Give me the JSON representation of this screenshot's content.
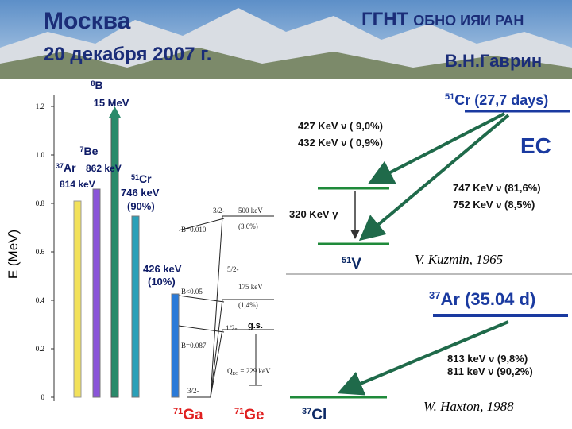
{
  "header": {
    "city": "Москва",
    "date": "20 декабря 2007 г.",
    "org_main": "ГГНТ",
    "org_rest": "ОБНО ИЯИ РАН",
    "author": "В.Н.Гаврин"
  },
  "left": {
    "axis_label": "E (MeV)",
    "yticks": [
      0,
      0.2,
      0.4,
      0.6,
      0.8,
      {
        "value": 1.0,
        "label": "1.0"
      },
      1.2
    ],
    "ylim": [
      0,
      1.2
    ],
    "sources": [
      {
        "mass": "8",
        "element": "B",
        "energy": "15 MeV"
      },
      {
        "mass": "7",
        "element": "Be",
        "energy": "862 keV"
      },
      {
        "mass": "37",
        "element": "Ar",
        "energy": "814 keV"
      },
      {
        "mass": "51",
        "element": "Cr",
        "energy": "746 keV",
        "branch": "(90%)"
      },
      {
        "energy": "426 keV",
        "branch": "(10%)"
      }
    ],
    "levels": {
      "l500_spin": "3/2-",
      "l500_energy": "500 keV",
      "l500_frac": "(3.6%)",
      "l500_b": "B=0.010",
      "l175_spin": "5/2-",
      "l175_energy": "175 keV",
      "l175_frac": "(1,4%)",
      "l175_b": "B<0.05",
      "gs_spin": "1/2-",
      "gs_label": "g.s.",
      "gs_b": "B=0.087",
      "qec": "Q",
      "qec_sub": "EC",
      "qec_value": " = 229 keV",
      "ga_spin": "3/2-"
    },
    "ga": {
      "mass": "71",
      "element": "Ga"
    },
    "ge": {
      "mass": "71",
      "element": "Ge"
    }
  },
  "right_top": {
    "source_mass": "51",
    "source": "Cr (27,7 days)",
    "line1": "427 KeV  ν  ( 9,0%)",
    "line2": "432 KeV  ν  ( 0,9%)",
    "ec": "EC",
    "line3": "747 KeV  ν  (81,6%)",
    "line4": "752 KeV  ν  (8,5%)",
    "gamma": "320 KeV  γ",
    "daughter_mass": "51",
    "daughter": "V",
    "credit": "V. Kuzmin, 1965"
  },
  "right_bottom": {
    "source_mass": "37",
    "source": "Ar (35.04  d)",
    "line1": "813 keV  ν  (9,8%)",
    "line2": "811 keV  ν  (90,2%)",
    "daughter_mass": "37",
    "daughter": "Cl",
    "credit": "W. Haxton, 1988"
  }
}
